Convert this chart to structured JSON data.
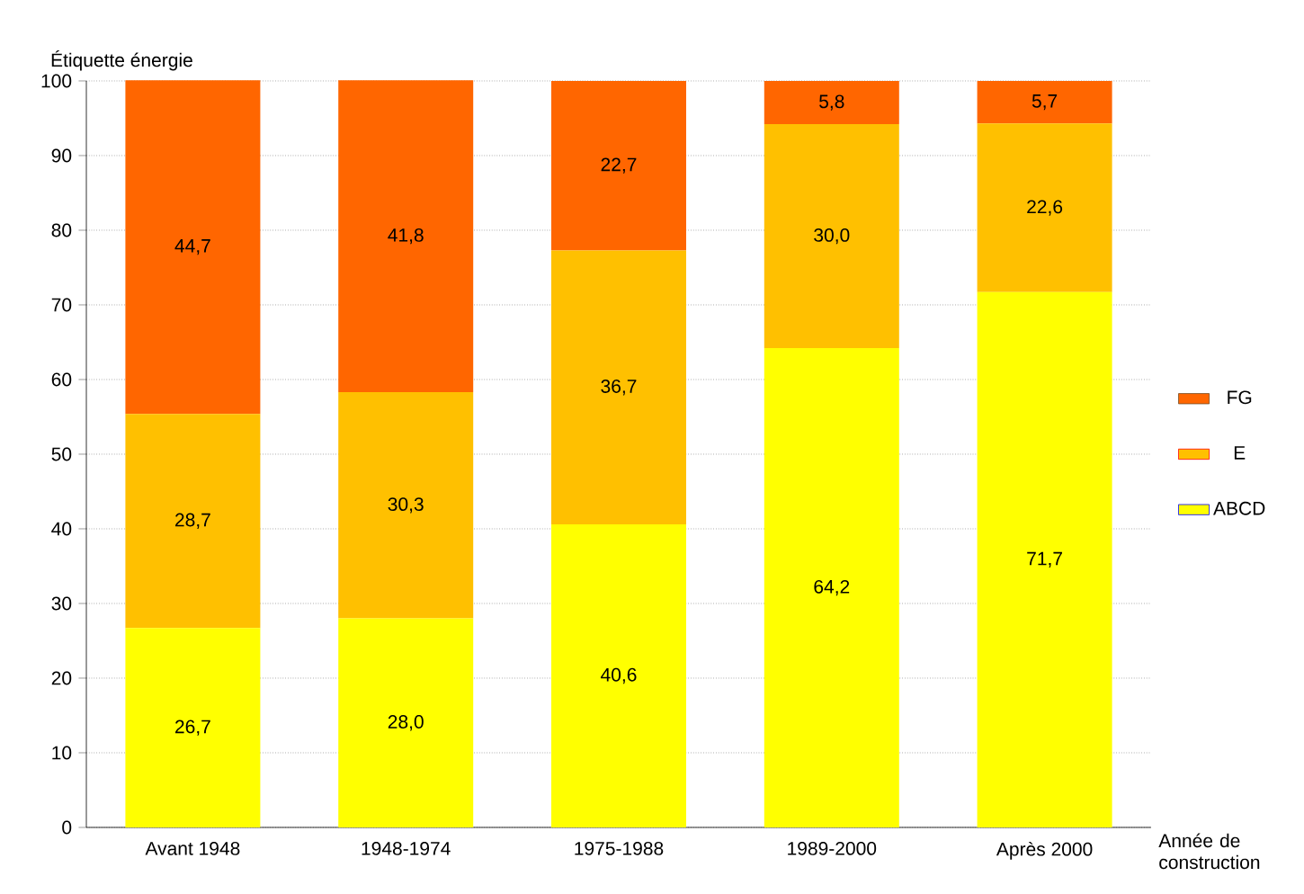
{
  "chart_data": {
    "type": "bar",
    "stacked": true,
    "ylabel": "Étiquette énergie",
    "xlabel": "Année de construction",
    "categories": [
      "Avant 1948",
      "1948-1974",
      "1975-1988",
      "1989-2000",
      "Après 2000"
    ],
    "series": [
      {
        "name": "ABCD",
        "color": "#ffff00",
        "values": [
          26.7,
          28.0,
          40.6,
          64.2,
          71.7
        ],
        "value_labels": [
          "26,7",
          "28,0",
          "40,6",
          "64,2",
          "71,7"
        ]
      },
      {
        "name": "E",
        "color": "#ffc000",
        "values": [
          28.7,
          30.3,
          36.7,
          30.0,
          22.6
        ],
        "value_labels": [
          "28,7",
          "30,3",
          "36,7",
          "30,0",
          "22,6"
        ]
      },
      {
        "name": "FG",
        "color": "#ff6600",
        "values": [
          44.7,
          41.8,
          22.7,
          5.8,
          5.7
        ],
        "value_labels": [
          "44,7",
          "41,8",
          "22,7",
          "5,8",
          "5,7"
        ]
      }
    ],
    "ylim": [
      0,
      100
    ],
    "yticks": [
      0,
      10,
      20,
      30,
      40,
      50,
      60,
      70,
      80,
      90,
      100
    ],
    "grid": "y",
    "legend": "right"
  }
}
